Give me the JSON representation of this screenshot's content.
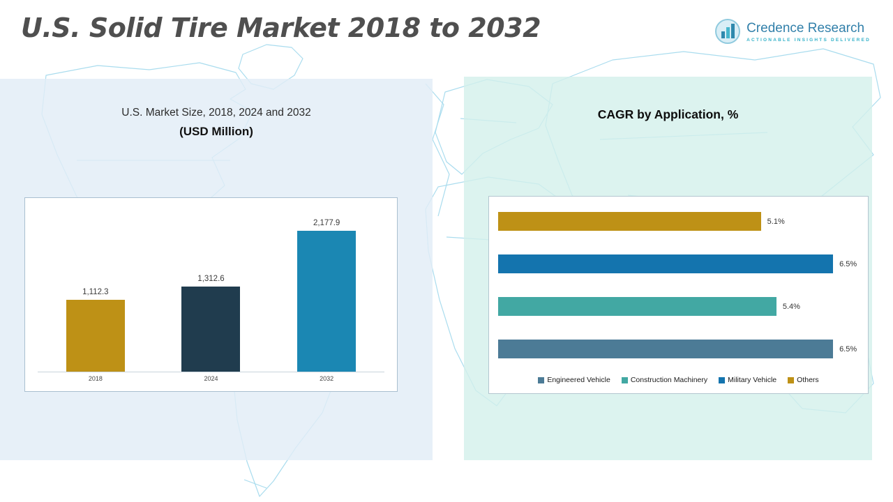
{
  "page": {
    "title": "U.S. Solid Tire Market 2018 to 2032"
  },
  "logo": {
    "name": "Credence Research",
    "tagline": "ACTIONABLE INSIGHTS DELIVERED"
  },
  "chart_data": [
    {
      "type": "bar",
      "title_line1": "U.S. Market Size, 2018, 2024 and 2032",
      "title_line2": "(USD Million)",
      "categories": [
        "2018",
        "2024",
        "2032"
      ],
      "values": [
        1112.3,
        1312.6,
        2177.9
      ],
      "labels": [
        "1,112.3",
        "1,312.6",
        "2,177.9"
      ],
      "colors": [
        "#BE9116",
        "#203C4E",
        "#1B87B3"
      ],
      "ylim": [
        0,
        2400
      ],
      "grid": false,
      "legend_position": "none"
    },
    {
      "type": "bar-horizontal",
      "title": "CAGR by Application, %",
      "categories": [
        "Others",
        "Military Vehicle",
        "Construction Machinery",
        "Engineered Vehicle"
      ],
      "values": [
        5.1,
        6.5,
        5.4,
        6.5
      ],
      "labels": [
        "5.1%",
        "6.5%",
        "5.4%",
        "6.5%"
      ],
      "colors": [
        "#BE9116",
        "#1474AE",
        "#42A8A3",
        "#4C7B96"
      ],
      "xlim": [
        0,
        7
      ],
      "grid": false,
      "legend_position": "bottom",
      "legend": [
        {
          "label": "Engineered Vehicle",
          "color": "#4C7B96"
        },
        {
          "label": "Construction Machinery",
          "color": "#42A8A3"
        },
        {
          "label": "Military Vehicle",
          "color": "#1474AE"
        },
        {
          "label": "Others",
          "color": "#BE9116"
        }
      ]
    }
  ]
}
